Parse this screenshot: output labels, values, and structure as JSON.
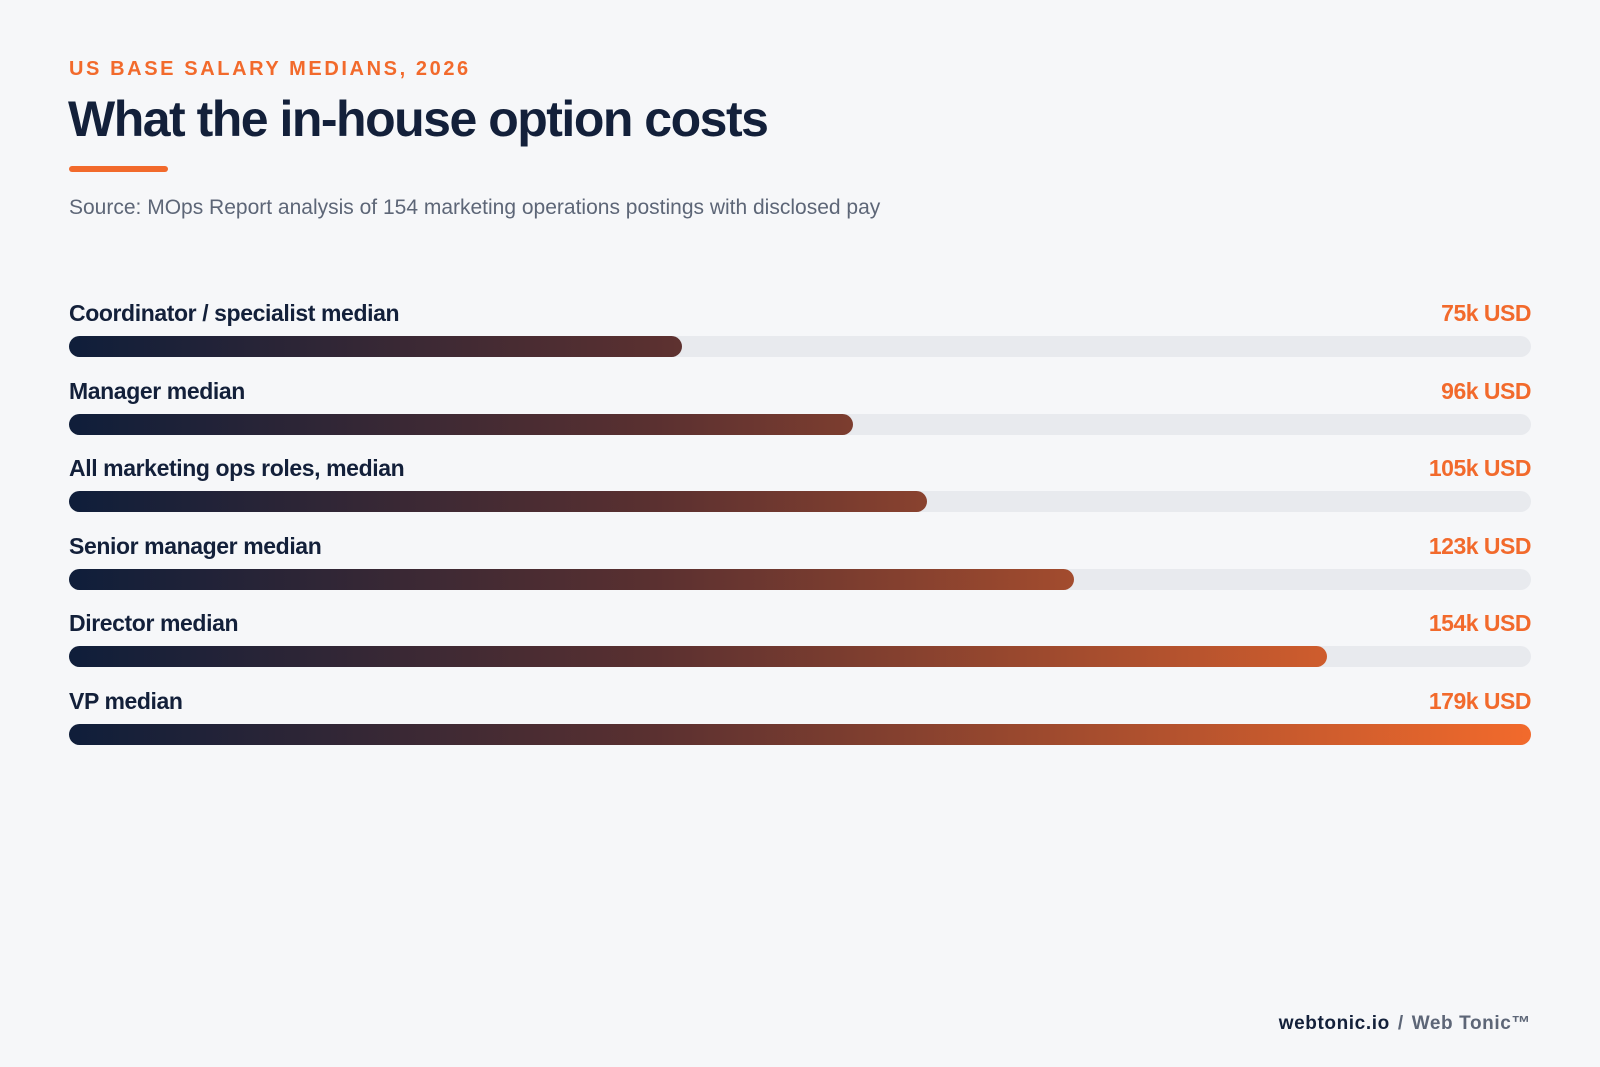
{
  "header": {
    "kicker": "US BASE SALARY MEDIANS, 2026",
    "title": "What the in-house option costs",
    "source": "Source: MOps Report analysis of 154 marketing operations postings with disclosed pay"
  },
  "footer": {
    "site": "webtonic.io",
    "separator": "/",
    "brand": "Web Tonic™"
  },
  "colors": {
    "accent": "#f26a2c",
    "navy": "#13203a",
    "track": "#e8eaee",
    "background": "#f6f7f9"
  },
  "chart_data": {
    "type": "bar",
    "orientation": "horizontal",
    "unit": "k USD",
    "xlim": [
      0,
      179
    ],
    "grid": false,
    "categories": [
      "Coordinator / specialist median",
      "Manager median",
      "All marketing ops roles, median",
      "Senior manager median",
      "Director median",
      "VP median"
    ],
    "values": [
      75,
      96,
      105,
      123,
      154,
      179
    ],
    "value_labels": [
      "75k USD",
      "96k USD",
      "105k USD",
      "123k USD",
      "154k USD",
      "179k USD"
    ]
  }
}
